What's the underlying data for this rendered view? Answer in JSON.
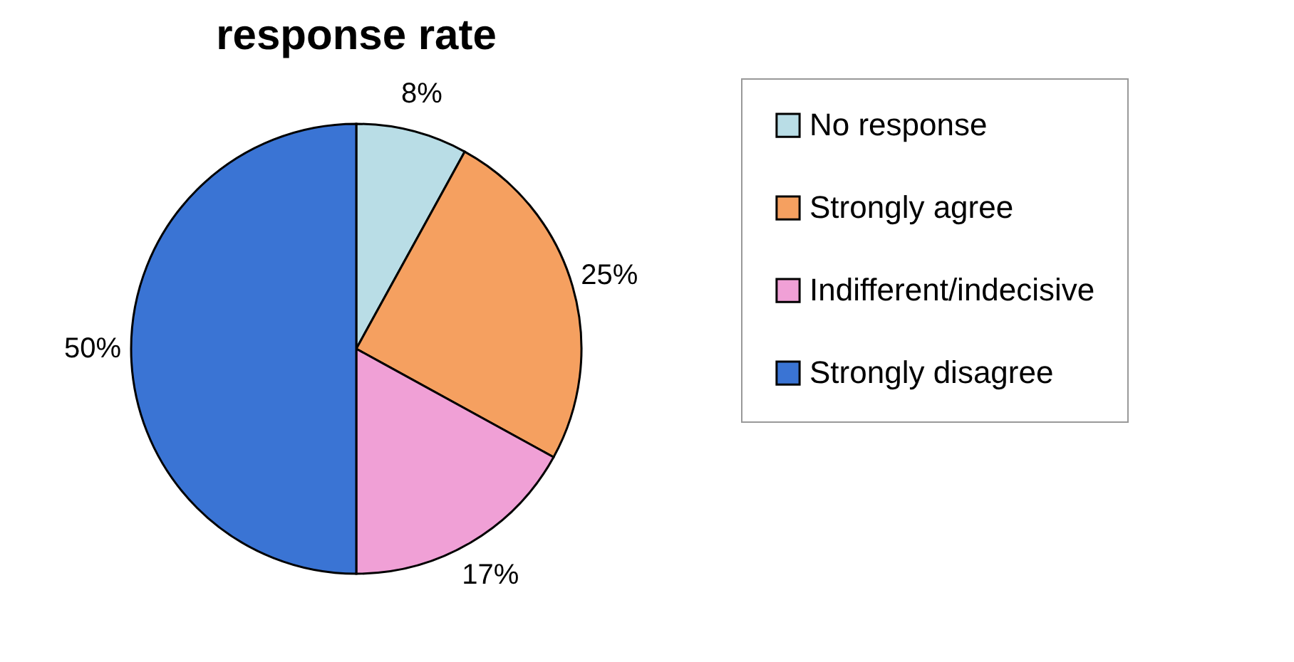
{
  "chart_data": {
    "type": "pie",
    "title": "response rate",
    "categories": [
      "No response",
      "Strongly agree",
      "Indifferent/indecisive",
      "Strongly disagree"
    ],
    "values": [
      8,
      25,
      17,
      50
    ],
    "colors": [
      "#b9dde6",
      "#f5a060",
      "#f0a0d6",
      "#3a74d4"
    ],
    "value_labels": [
      "8%",
      "25%",
      "17%",
      "50%"
    ],
    "legend": "right"
  }
}
